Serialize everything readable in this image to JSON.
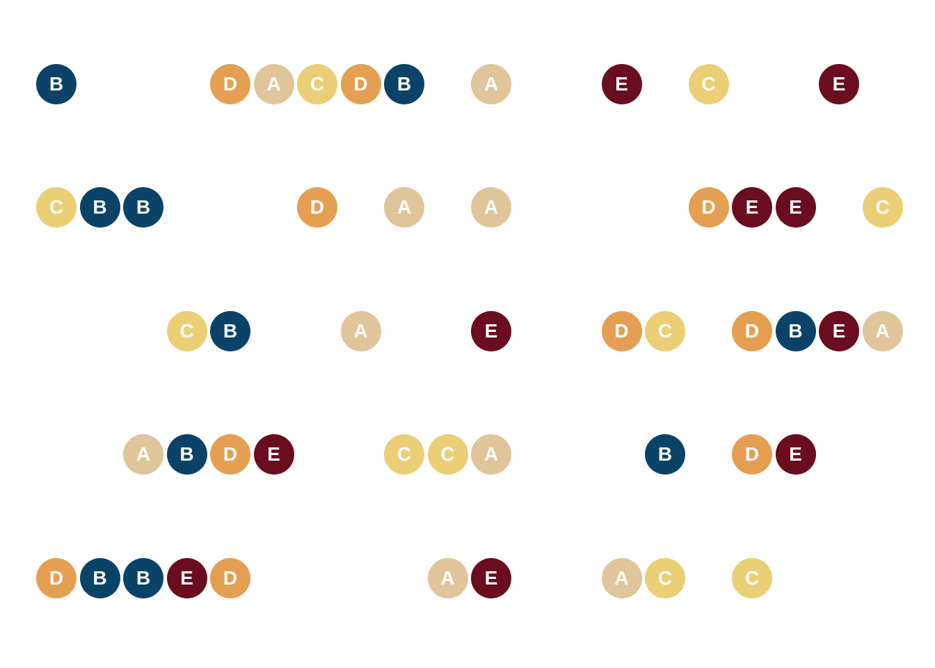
{
  "colors": {
    "A": "#E0C59A",
    "B": "#0B4368",
    "C": "#EBCF76",
    "D": "#E59F53",
    "E": "#6A0D1F"
  },
  "rows": [
    {
      "tokens": [
        {
          "slot": 0,
          "letter": "B"
        },
        {
          "slot": 4,
          "letter": "D"
        },
        {
          "slot": 5,
          "letter": "A"
        },
        {
          "slot": 6,
          "letter": "C"
        },
        {
          "slot": 7,
          "letter": "D"
        },
        {
          "slot": 8,
          "letter": "B"
        },
        {
          "slot": 10,
          "letter": "A"
        },
        {
          "slot": 13,
          "letter": "E"
        },
        {
          "slot": 15,
          "letter": "C"
        },
        {
          "slot": 18,
          "letter": "E"
        }
      ]
    },
    {
      "tokens": [
        {
          "slot": 0,
          "letter": "C"
        },
        {
          "slot": 1,
          "letter": "B"
        },
        {
          "slot": 2,
          "letter": "B"
        },
        {
          "slot": 6,
          "letter": "D"
        },
        {
          "slot": 8,
          "letter": "A"
        },
        {
          "slot": 10,
          "letter": "A"
        },
        {
          "slot": 15,
          "letter": "D"
        },
        {
          "slot": 16,
          "letter": "E"
        },
        {
          "slot": 17,
          "letter": "E"
        },
        {
          "slot": 19,
          "letter": "C"
        }
      ]
    },
    {
      "tokens": [
        {
          "slot": 3,
          "letter": "C"
        },
        {
          "slot": 4,
          "letter": "B"
        },
        {
          "slot": 7,
          "letter": "A"
        },
        {
          "slot": 10,
          "letter": "E"
        },
        {
          "slot": 13,
          "letter": "D"
        },
        {
          "slot": 14,
          "letter": "C"
        },
        {
          "slot": 16,
          "letter": "D"
        },
        {
          "slot": 17,
          "letter": "B"
        },
        {
          "slot": 18,
          "letter": "E"
        },
        {
          "slot": 19,
          "letter": "A"
        }
      ]
    },
    {
      "tokens": [
        {
          "slot": 2,
          "letter": "A"
        },
        {
          "slot": 3,
          "letter": "B"
        },
        {
          "slot": 4,
          "letter": "D"
        },
        {
          "slot": 5,
          "letter": "E"
        },
        {
          "slot": 8,
          "letter": "C"
        },
        {
          "slot": 9,
          "letter": "C"
        },
        {
          "slot": 10,
          "letter": "A"
        },
        {
          "slot": 14,
          "letter": "B"
        },
        {
          "slot": 16,
          "letter": "D"
        },
        {
          "slot": 17,
          "letter": "E"
        }
      ]
    },
    {
      "tokens": [
        {
          "slot": 0,
          "letter": "D"
        },
        {
          "slot": 1,
          "letter": "B"
        },
        {
          "slot": 2,
          "letter": "B"
        },
        {
          "slot": 3,
          "letter": "E"
        },
        {
          "slot": 4,
          "letter": "D"
        },
        {
          "slot": 9,
          "letter": "A"
        },
        {
          "slot": 10,
          "letter": "E"
        },
        {
          "slot": 13,
          "letter": "A"
        },
        {
          "slot": 14,
          "letter": "C"
        },
        {
          "slot": 16,
          "letter": "C"
        }
      ]
    }
  ]
}
